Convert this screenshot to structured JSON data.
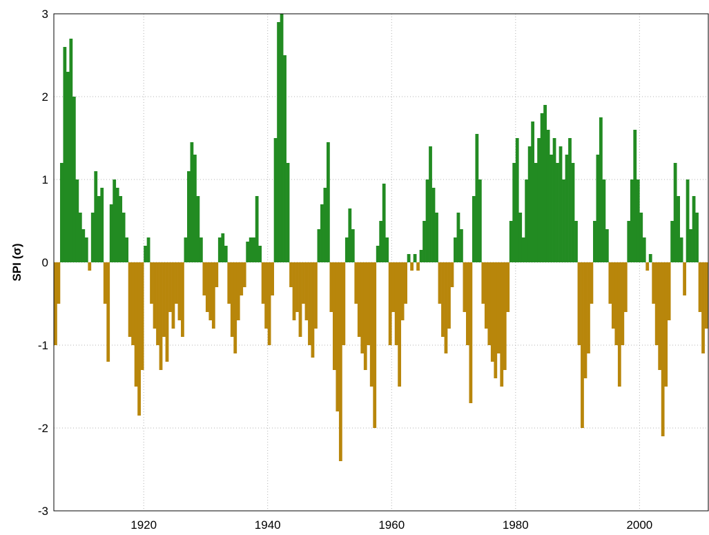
{
  "chart_data": {
    "type": "bar",
    "y_label": "SPI (σ)",
    "colors": {
      "positive": "#228b22",
      "negative": "#b8860b"
    },
    "xlim": [
      1905.5,
      2011.1
    ],
    "xticks": [
      1920,
      1940,
      1960,
      1980,
      2000
    ],
    "ylim": [
      -3,
      3
    ],
    "yticks": [
      -3,
      -2,
      -1,
      0,
      1,
      2,
      3
    ],
    "grid": true,
    "x": [
      1905.5,
      1906,
      1906.5,
      1907,
      1907.5,
      1908,
      1908.5,
      1909,
      1909.5,
      1910,
      1910.5,
      1911,
      1911.5,
      1912,
      1912.5,
      1913,
      1913.5,
      1914,
      1914.5,
      1915,
      1915.5,
      1916,
      1916.5,
      1917,
      1917.5,
      1918,
      1918.5,
      1919,
      1919.5,
      1920,
      1920.5,
      1921,
      1921.5,
      1922,
      1922.5,
      1923,
      1923.5,
      1924,
      1924.5,
      1925,
      1925.5,
      1926,
      1926.5,
      1927,
      1927.5,
      1928,
      1928.5,
      1929,
      1929.5,
      1930,
      1930.5,
      1931,
      1931.5,
      1932,
      1932.5,
      1933,
      1933.5,
      1934,
      1934.5,
      1935,
      1935.5,
      1936,
      1936.5,
      1937,
      1937.5,
      1938,
      1938.5,
      1939,
      1939.5,
      1940,
      1940.5,
      1941,
      1941.5,
      1942,
      1942.5,
      1943,
      1943.5,
      1944,
      1944.5,
      1945,
      1945.5,
      1946,
      1946.5,
      1947,
      1947.5,
      1948,
      1948.5,
      1949,
      1949.5,
      1950,
      1950.5,
      1951,
      1951.5,
      1952,
      1952.5,
      1953,
      1953.5,
      1954,
      1954.5,
      1955,
      1955.5,
      1956,
      1956.5,
      1957,
      1957.5,
      1958,
      1958.5,
      1959,
      1959.5,
      1960,
      1960.5,
      1961,
      1961.5,
      1962,
      1962.5,
      1963,
      1963.5,
      1964,
      1964.5,
      1965,
      1965.5,
      1966,
      1966.5,
      1967,
      1967.5,
      1968,
      1968.5,
      1969,
      1969.5,
      1970,
      1970.5,
      1971,
      1971.5,
      1972,
      1972.5,
      1973,
      1973.5,
      1974,
      1974.5,
      1975,
      1975.5,
      1976,
      1976.5,
      1977,
      1977.5,
      1978,
      1978.5,
      1979,
      1979.5,
      1980,
      1980.5,
      1981,
      1981.5,
      1982,
      1982.5,
      1983,
      1983.5,
      1984,
      1984.5,
      1985,
      1985.5,
      1986,
      1986.5,
      1987,
      1987.5,
      1988,
      1988.5,
      1989,
      1989.5,
      1990,
      1990.5,
      1991,
      1991.5,
      1992,
      1992.5,
      1993,
      1993.5,
      1994,
      1994.5,
      1995,
      1995.5,
      1996,
      1996.5,
      1997,
      1997.5,
      1998,
      1998.5,
      1999,
      1999.5,
      2000,
      2000.5,
      2001,
      2001.5,
      2002,
      2002.5,
      2003,
      2003.5,
      2004,
      2004.5,
      2005,
      2005.5,
      2006,
      2006.5,
      2007,
      2007.5,
      2008,
      2008.5,
      2009,
      2009.5,
      2010,
      2010.5
    ],
    "values": [
      -1.0,
      -0.5,
      1.2,
      2.6,
      2.3,
      2.7,
      2.0,
      1.0,
      0.6,
      0.4,
      0.3,
      -0.1,
      0.6,
      1.1,
      0.8,
      0.9,
      -0.5,
      -1.2,
      0.7,
      1.0,
      0.9,
      0.8,
      0.6,
      0.3,
      -0.9,
      -1.0,
      -1.5,
      -1.85,
      -1.3,
      0.2,
      0.3,
      -0.5,
      -0.8,
      -1.0,
      -1.3,
      -0.9,
      -1.2,
      -0.6,
      -0.8,
      -0.5,
      -0.7,
      -0.9,
      0.3,
      1.1,
      1.45,
      1.3,
      0.8,
      0.3,
      -0.4,
      -0.6,
      -0.7,
      -0.8,
      -0.3,
      0.3,
      0.35,
      0.2,
      -0.5,
      -0.9,
      -1.1,
      -0.7,
      -0.4,
      -0.3,
      0.25,
      0.3,
      0.3,
      0.8,
      0.2,
      -0.5,
      -0.8,
      -1.0,
      -0.4,
      1.5,
      2.9,
      3.0,
      2.5,
      1.2,
      -0.3,
      -0.7,
      -0.6,
      -0.9,
      -0.5,
      -0.7,
      -1.0,
      -1.15,
      -0.8,
      0.4,
      0.7,
      0.9,
      1.45,
      -0.6,
      -1.3,
      -1.8,
      -2.4,
      -1.0,
      0.3,
      0.65,
      0.4,
      -0.5,
      -0.9,
      -1.1,
      -1.3,
      -1.0,
      -1.5,
      -2.0,
      0.2,
      0.5,
      0.95,
      0.3,
      -1.0,
      -0.6,
      -1.0,
      -1.5,
      -0.7,
      -0.5,
      0.1,
      -0.1,
      0.1,
      -0.1,
      0.15,
      0.5,
      1.0,
      1.4,
      0.9,
      0.6,
      -0.5,
      -0.9,
      -1.1,
      -0.8,
      -0.3,
      0.3,
      0.6,
      0.4,
      -0.6,
      -1.0,
      -1.7,
      0.8,
      1.55,
      1.0,
      -0.5,
      -0.8,
      -1.0,
      -1.2,
      -1.4,
      -1.1,
      -1.5,
      -1.3,
      -0.6,
      0.5,
      1.2,
      1.5,
      0.6,
      0.3,
      1.0,
      1.4,
      1.7,
      1.2,
      1.5,
      1.8,
      1.9,
      1.6,
      1.3,
      1.5,
      1.2,
      1.4,
      1.0,
      1.3,
      1.5,
      1.2,
      0.5,
      -1.0,
      -2.0,
      -1.4,
      -1.1,
      -0.5,
      0.5,
      1.3,
      1.75,
      1.0,
      0.4,
      -0.5,
      -0.8,
      -1.0,
      -1.5,
      -1.0,
      -0.6,
      0.5,
      1.0,
      1.6,
      1.0,
      0.6,
      0.3,
      -0.1,
      0.1,
      -0.5,
      -1.0,
      -1.3,
      -2.1,
      -1.5,
      -0.7,
      0.5,
      1.2,
      0.8,
      0.3,
      -0.4,
      1.0,
      0.4,
      0.8,
      0.6,
      -0.6,
      -1.1,
      -0.8
    ]
  }
}
